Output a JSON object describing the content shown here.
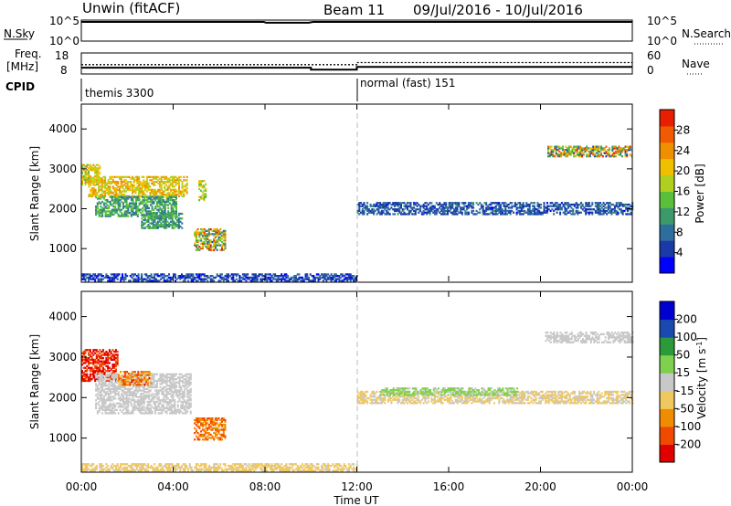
{
  "chart_data": [
    {
      "type": "line",
      "panel": "noise",
      "header": {
        "station": "Unwin (fitACF)",
        "beam": "Beam 11",
        "dates": "09/Jul/2016 - 10/Jul/2016"
      },
      "left_label": "N.Sky",
      "right_label": "N.Search",
      "left_ticks": [
        "10^5",
        "10^0"
      ],
      "right_ticks": [
        "10^5",
        "10^0"
      ],
      "series": [
        {
          "name": "N.Sky",
          "x": [
            0,
            7.95,
            8.05,
            9.9,
            10.1,
            24
          ],
          "values": [
            100000,
            100000,
            60000,
            60000,
            100000,
            100000
          ]
        }
      ]
    },
    {
      "type": "line",
      "panel": "freq_nave",
      "left_label_top": "Freq.",
      "left_label_bottom": "[MHz]",
      "right_label": "Nave",
      "left_ticks": [
        "18",
        "8"
      ],
      "right_ticks": [
        "60",
        "0"
      ],
      "series": [
        {
          "name": "Freq.",
          "x": [
            0,
            10,
            10,
            12,
            12,
            24
          ],
          "values": [
            10.6,
            10.6,
            9.4,
            9.4,
            11.0,
            11.0
          ]
        },
        {
          "name": "Nave",
          "x": [
            0,
            10,
            10,
            12,
            12,
            24
          ],
          "values": [
            26,
            26,
            26,
            26,
            33,
            33
          ]
        }
      ]
    },
    {
      "type": "text",
      "panel": "cpid",
      "left_label": "CPID",
      "segments": [
        {
          "text": "themis 3300",
          "start": 0
        },
        {
          "text": "normal (fast) 151",
          "start": 12
        }
      ]
    },
    {
      "type": "heatmap",
      "panel": "power",
      "ylabel": "Slant Range [km]",
      "ylim": [
        180,
        4600
      ],
      "yticks": [
        "1000",
        "2000",
        "3000",
        "4000"
      ],
      "colorbar_label": "Power [dB]",
      "colorbar_ticks": [
        "4",
        "8",
        "12",
        "16",
        "20",
        "24",
        "28"
      ],
      "colorbar_range": [
        0,
        32
      ],
      "colors": [
        "#0000ff",
        "#1a3aa8",
        "#2e6e9e",
        "#3c9a6a",
        "#5abf3a",
        "#b0d020",
        "#f0c000",
        "#f09000",
        "#f05a00",
        "#e81e00"
      ],
      "regions": [
        {
          "t0": 0.0,
          "t1": 0.8,
          "r0": 2600,
          "r1": 3100,
          "v0": 14,
          "v1": 24
        },
        {
          "t0": 0.3,
          "t1": 4.6,
          "r0": 2300,
          "r1": 2800,
          "v0": 16,
          "v1": 25
        },
        {
          "t0": 0.6,
          "t1": 4.1,
          "r0": 1800,
          "r1": 2300,
          "v0": 8,
          "v1": 16
        },
        {
          "t0": 2.6,
          "t1": 4.4,
          "r0": 1500,
          "r1": 1900,
          "v0": 8,
          "v1": 15
        },
        {
          "t0": 5.1,
          "t1": 5.4,
          "r0": 2200,
          "r1": 2700,
          "v0": 14,
          "v1": 22
        },
        {
          "t0": 4.9,
          "t1": 6.3,
          "r0": 950,
          "r1": 1500,
          "v0": 6,
          "v1": 30
        },
        {
          "t0": 0.0,
          "t1": 12.0,
          "r0": 180,
          "r1": 380,
          "v0": 2,
          "v1": 9
        },
        {
          "t0": 12.0,
          "t1": 24.0,
          "r0": 1850,
          "r1": 2150,
          "v0": 3,
          "v1": 10
        },
        {
          "t0": 20.3,
          "t1": 24.0,
          "r0": 3300,
          "r1": 3550,
          "v0": 4,
          "v1": 30
        }
      ]
    },
    {
      "type": "heatmap",
      "panel": "velocity",
      "ylabel": "Slant Range [km]",
      "ylim": [
        180,
        4600
      ],
      "yticks": [
        "1000",
        "2000",
        "3000",
        "4000"
      ],
      "colorbar_label": "Velocity [m s^-1]",
      "colorbar_ticks": [
        "200",
        "100",
        "50",
        "15",
        "-15",
        "-50",
        "-100",
        "-200"
      ],
      "colorbar_range": [
        -250,
        250
      ],
      "colors": [
        "#e00000",
        "#f04a00",
        "#f08c00",
        "#f0c860",
        "#c8c8c8",
        "#80d050",
        "#2a9a3a",
        "#1a4ab0",
        "#0000d0"
      ],
      "regions": [
        {
          "t0": 0.0,
          "t1": 1.6,
          "r0": 2400,
          "r1": 3200,
          "v0": -250,
          "v1": -150
        },
        {
          "t0": 0.6,
          "t1": 4.8,
          "r0": 1600,
          "r1": 2600,
          "v0": -12,
          "v1": 12
        },
        {
          "t0": 1.6,
          "t1": 3.0,
          "r0": 2300,
          "r1": 2650,
          "v0": -200,
          "v1": -60
        },
        {
          "t0": 4.9,
          "t1": 6.3,
          "r0": 950,
          "r1": 1500,
          "v0": -180,
          "v1": -80
        },
        {
          "t0": 0.0,
          "t1": 12.0,
          "r0": 180,
          "r1": 360,
          "v0": -70,
          "v1": -20
        },
        {
          "t0": 12.0,
          "t1": 24.0,
          "r0": 1850,
          "r1": 2150,
          "v0": -45,
          "v1": -15
        },
        {
          "t0": 13.0,
          "t1": 19.0,
          "r0": 2050,
          "r1": 2250,
          "v0": 20,
          "v1": 60
        },
        {
          "t0": 20.2,
          "t1": 24.0,
          "r0": 3350,
          "r1": 3600,
          "v0": -10,
          "v1": 10
        }
      ]
    }
  ],
  "x_axis": {
    "label": "Time UT",
    "tick_labels": [
      "00:00",
      "04:00",
      "08:00",
      "12:00",
      "16:00",
      "20:00",
      "00:00"
    ],
    "range_hours": [
      0,
      24
    ]
  }
}
